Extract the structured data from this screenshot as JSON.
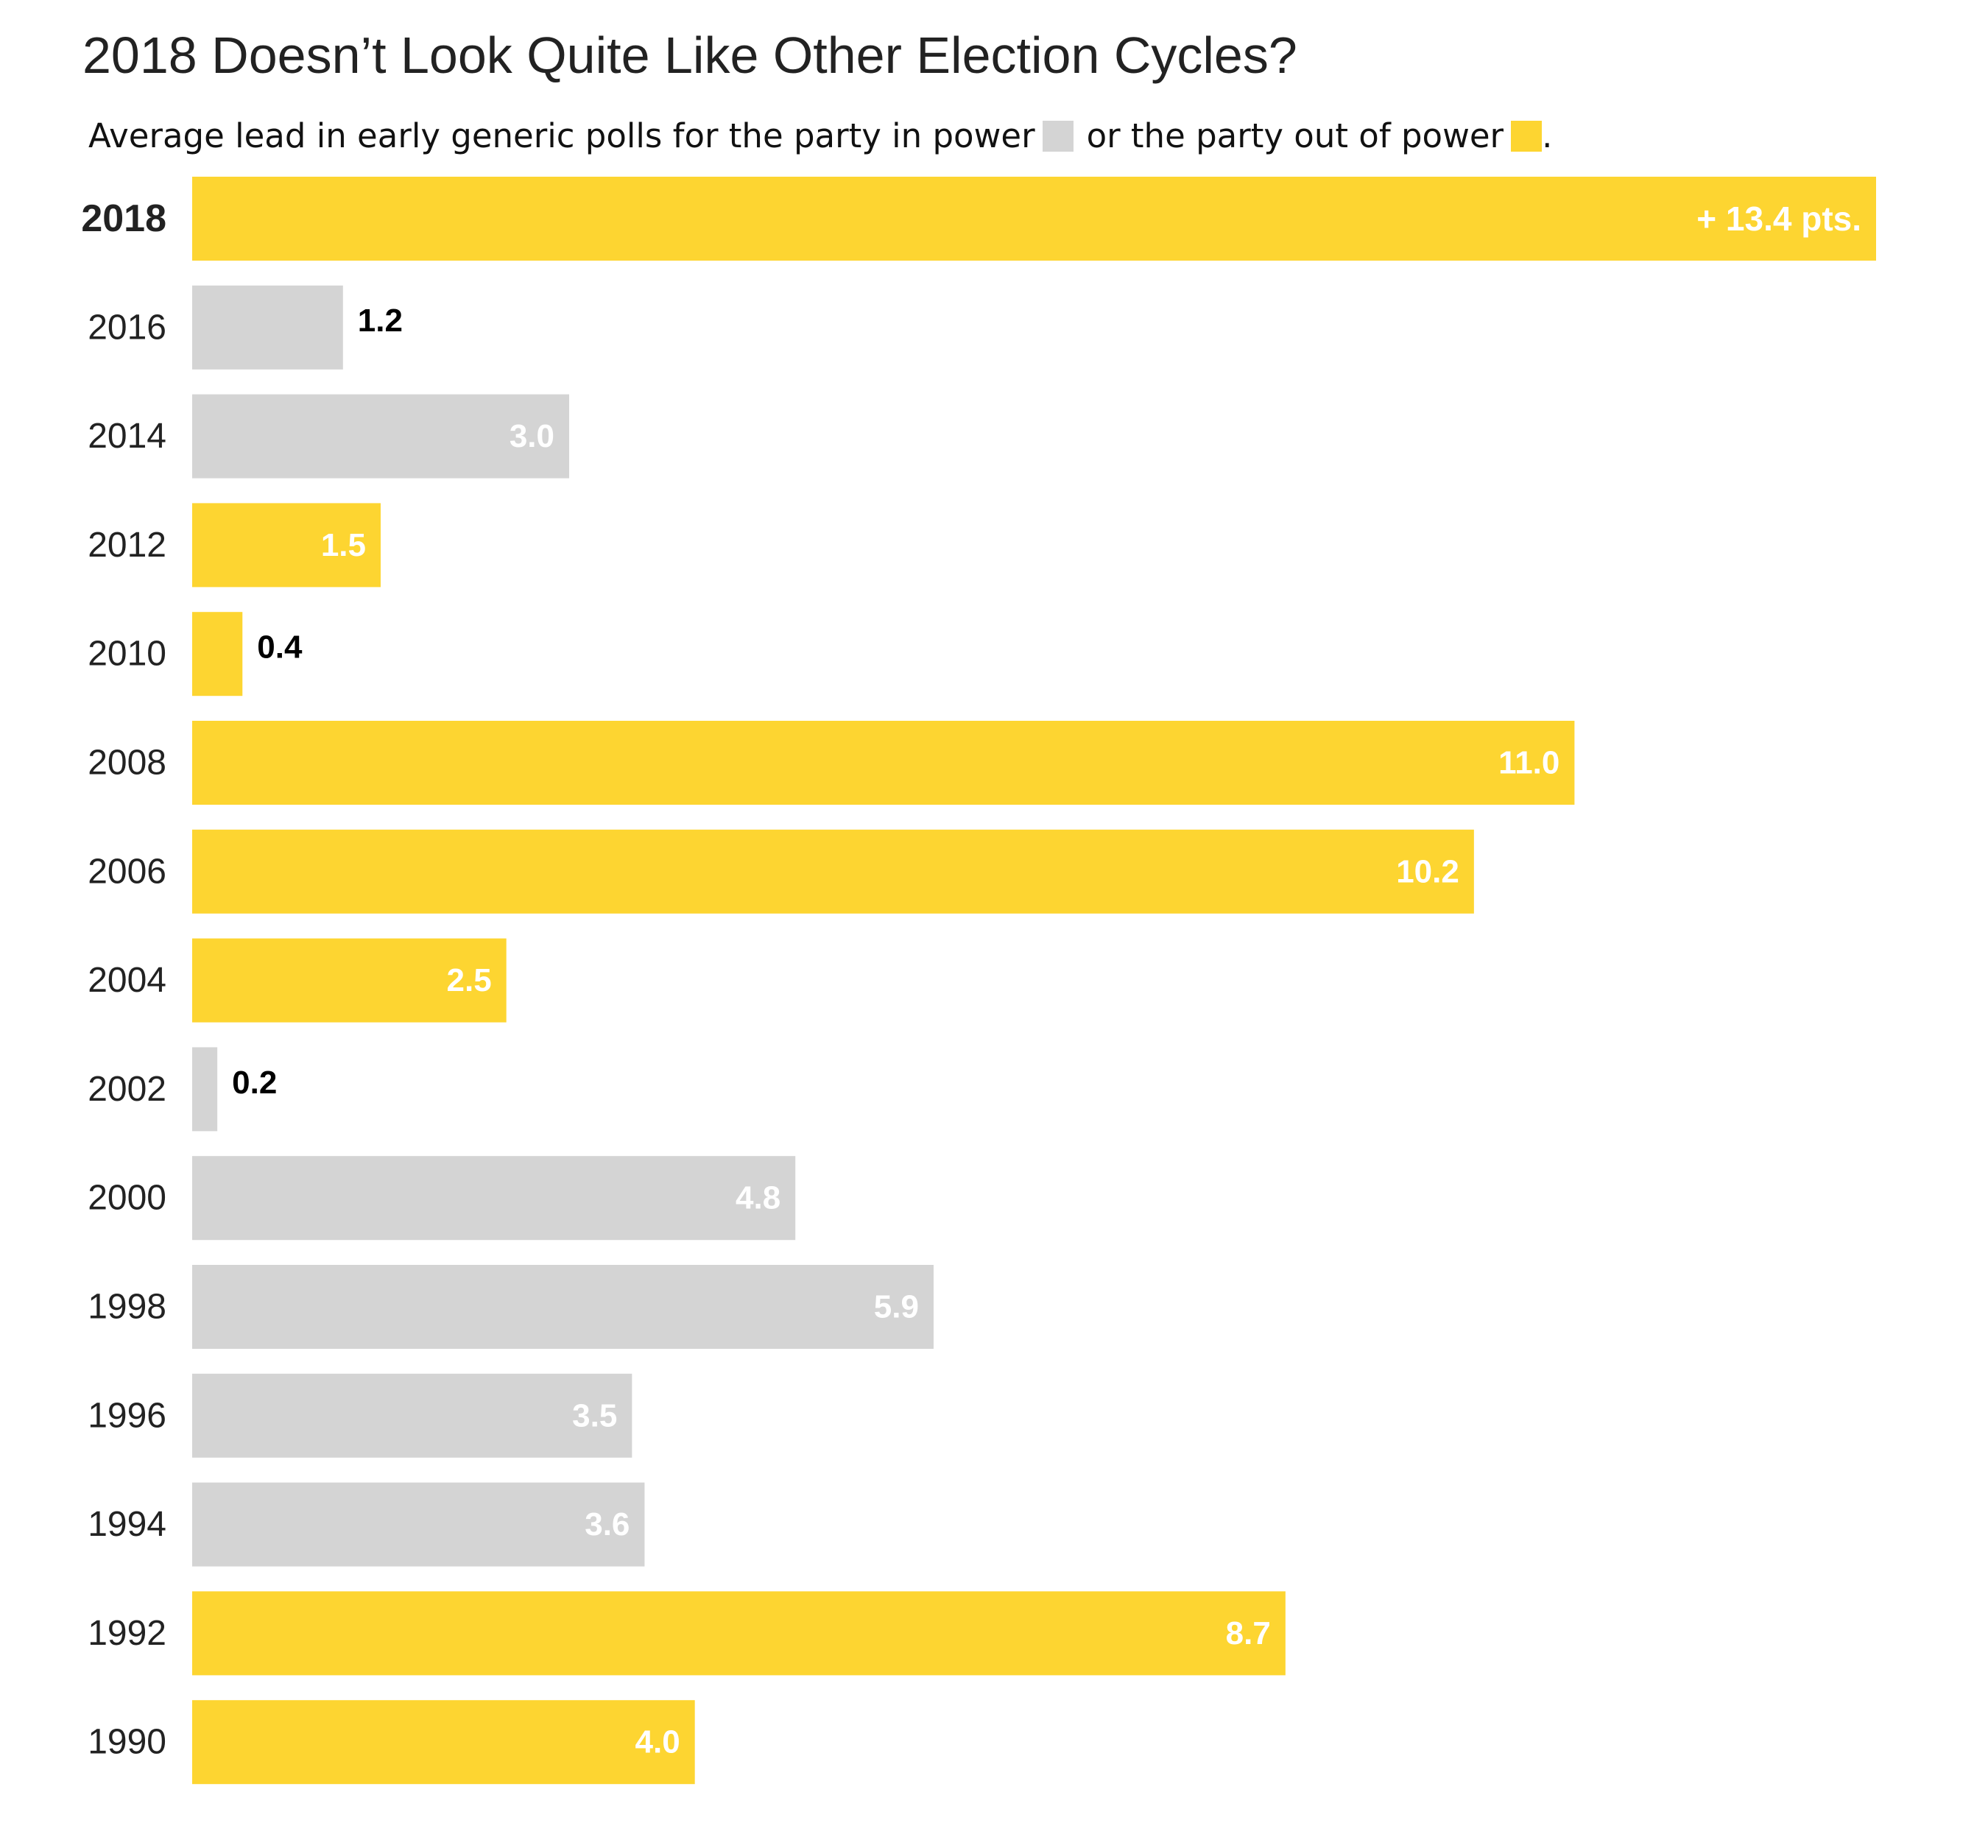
{
  "chart_data": {
    "type": "bar",
    "orientation": "horizontal",
    "title": "2018 Doesn’t Look Quite Like Other Election Cycles?",
    "subtitle": {
      "prefix": "Average lead in early generic polls for the party in power",
      "middle": "or the party out of power",
      "suffix": "."
    },
    "legend": [
      {
        "name": "party in power",
        "color": "#d4d4d4"
      },
      {
        "name": "party out of power",
        "color": "#fdd531"
      }
    ],
    "colors": {
      "in_power": "#d4d4d4",
      "out_of_power": "#fdd531",
      "label_inside": "#ffffff",
      "label_outside": "#000000"
    },
    "categories": [
      "2018",
      "2016",
      "2014",
      "2012",
      "2010",
      "2008",
      "2006",
      "2004",
      "2002",
      "2000",
      "1998",
      "1996",
      "1994",
      "1992",
      "1990"
    ],
    "values": [
      13.4,
      1.2,
      3.0,
      1.5,
      0.4,
      11.0,
      10.2,
      2.5,
      0.2,
      4.8,
      5.9,
      3.5,
      3.6,
      8.7,
      4.0
    ],
    "value_labels": [
      "+ 13.4 pts.",
      "1.2",
      "3.0",
      "1.5",
      "0.4",
      "11.0",
      "10.2",
      "2.5",
      "0.2",
      "4.8",
      "5.9",
      "3.5",
      "3.6",
      "8.7",
      "4.0"
    ],
    "leader": [
      "out",
      "in",
      "in",
      "out",
      "out",
      "out",
      "out",
      "out",
      "in",
      "in",
      "in",
      "in",
      "in",
      "out",
      "out"
    ],
    "highlight": "2018",
    "xlim": [
      0,
      13.4
    ],
    "grid": false
  }
}
